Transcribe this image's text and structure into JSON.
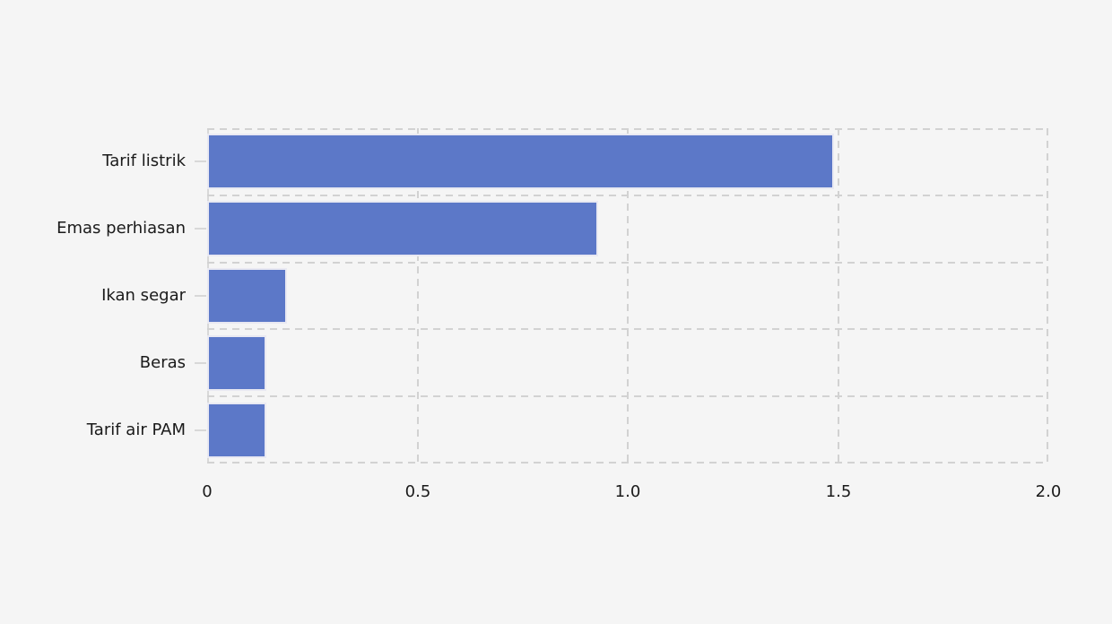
{
  "chart_data": {
    "type": "bar",
    "orientation": "horizontal",
    "title": "",
    "xlabel": "",
    "ylabel": "",
    "categories": [
      "Tarif listrik",
      "Emas perhiasan",
      "Ikan segar",
      "Beras",
      "Tarif air PAM"
    ],
    "values": [
      1.49,
      0.93,
      0.19,
      0.14,
      0.14
    ],
    "xlim": [
      0,
      2.0
    ],
    "xticks": [
      0,
      0.5,
      1.0,
      1.5,
      2.0
    ],
    "xtick_labels": [
      "0",
      "0.5",
      "1.0",
      "1.5",
      "2.0"
    ],
    "grid": "dashed box with vertical and horizontal gridlines",
    "legend": "none"
  },
  "colors": {
    "background": "#f5f5f5",
    "bar_fill": "#5c78c8",
    "bar_edge": "#e9e9f2",
    "grid_line": "#d2d2d2",
    "axis_line": "#d8d8d8",
    "text": "#1a1a1a"
  }
}
